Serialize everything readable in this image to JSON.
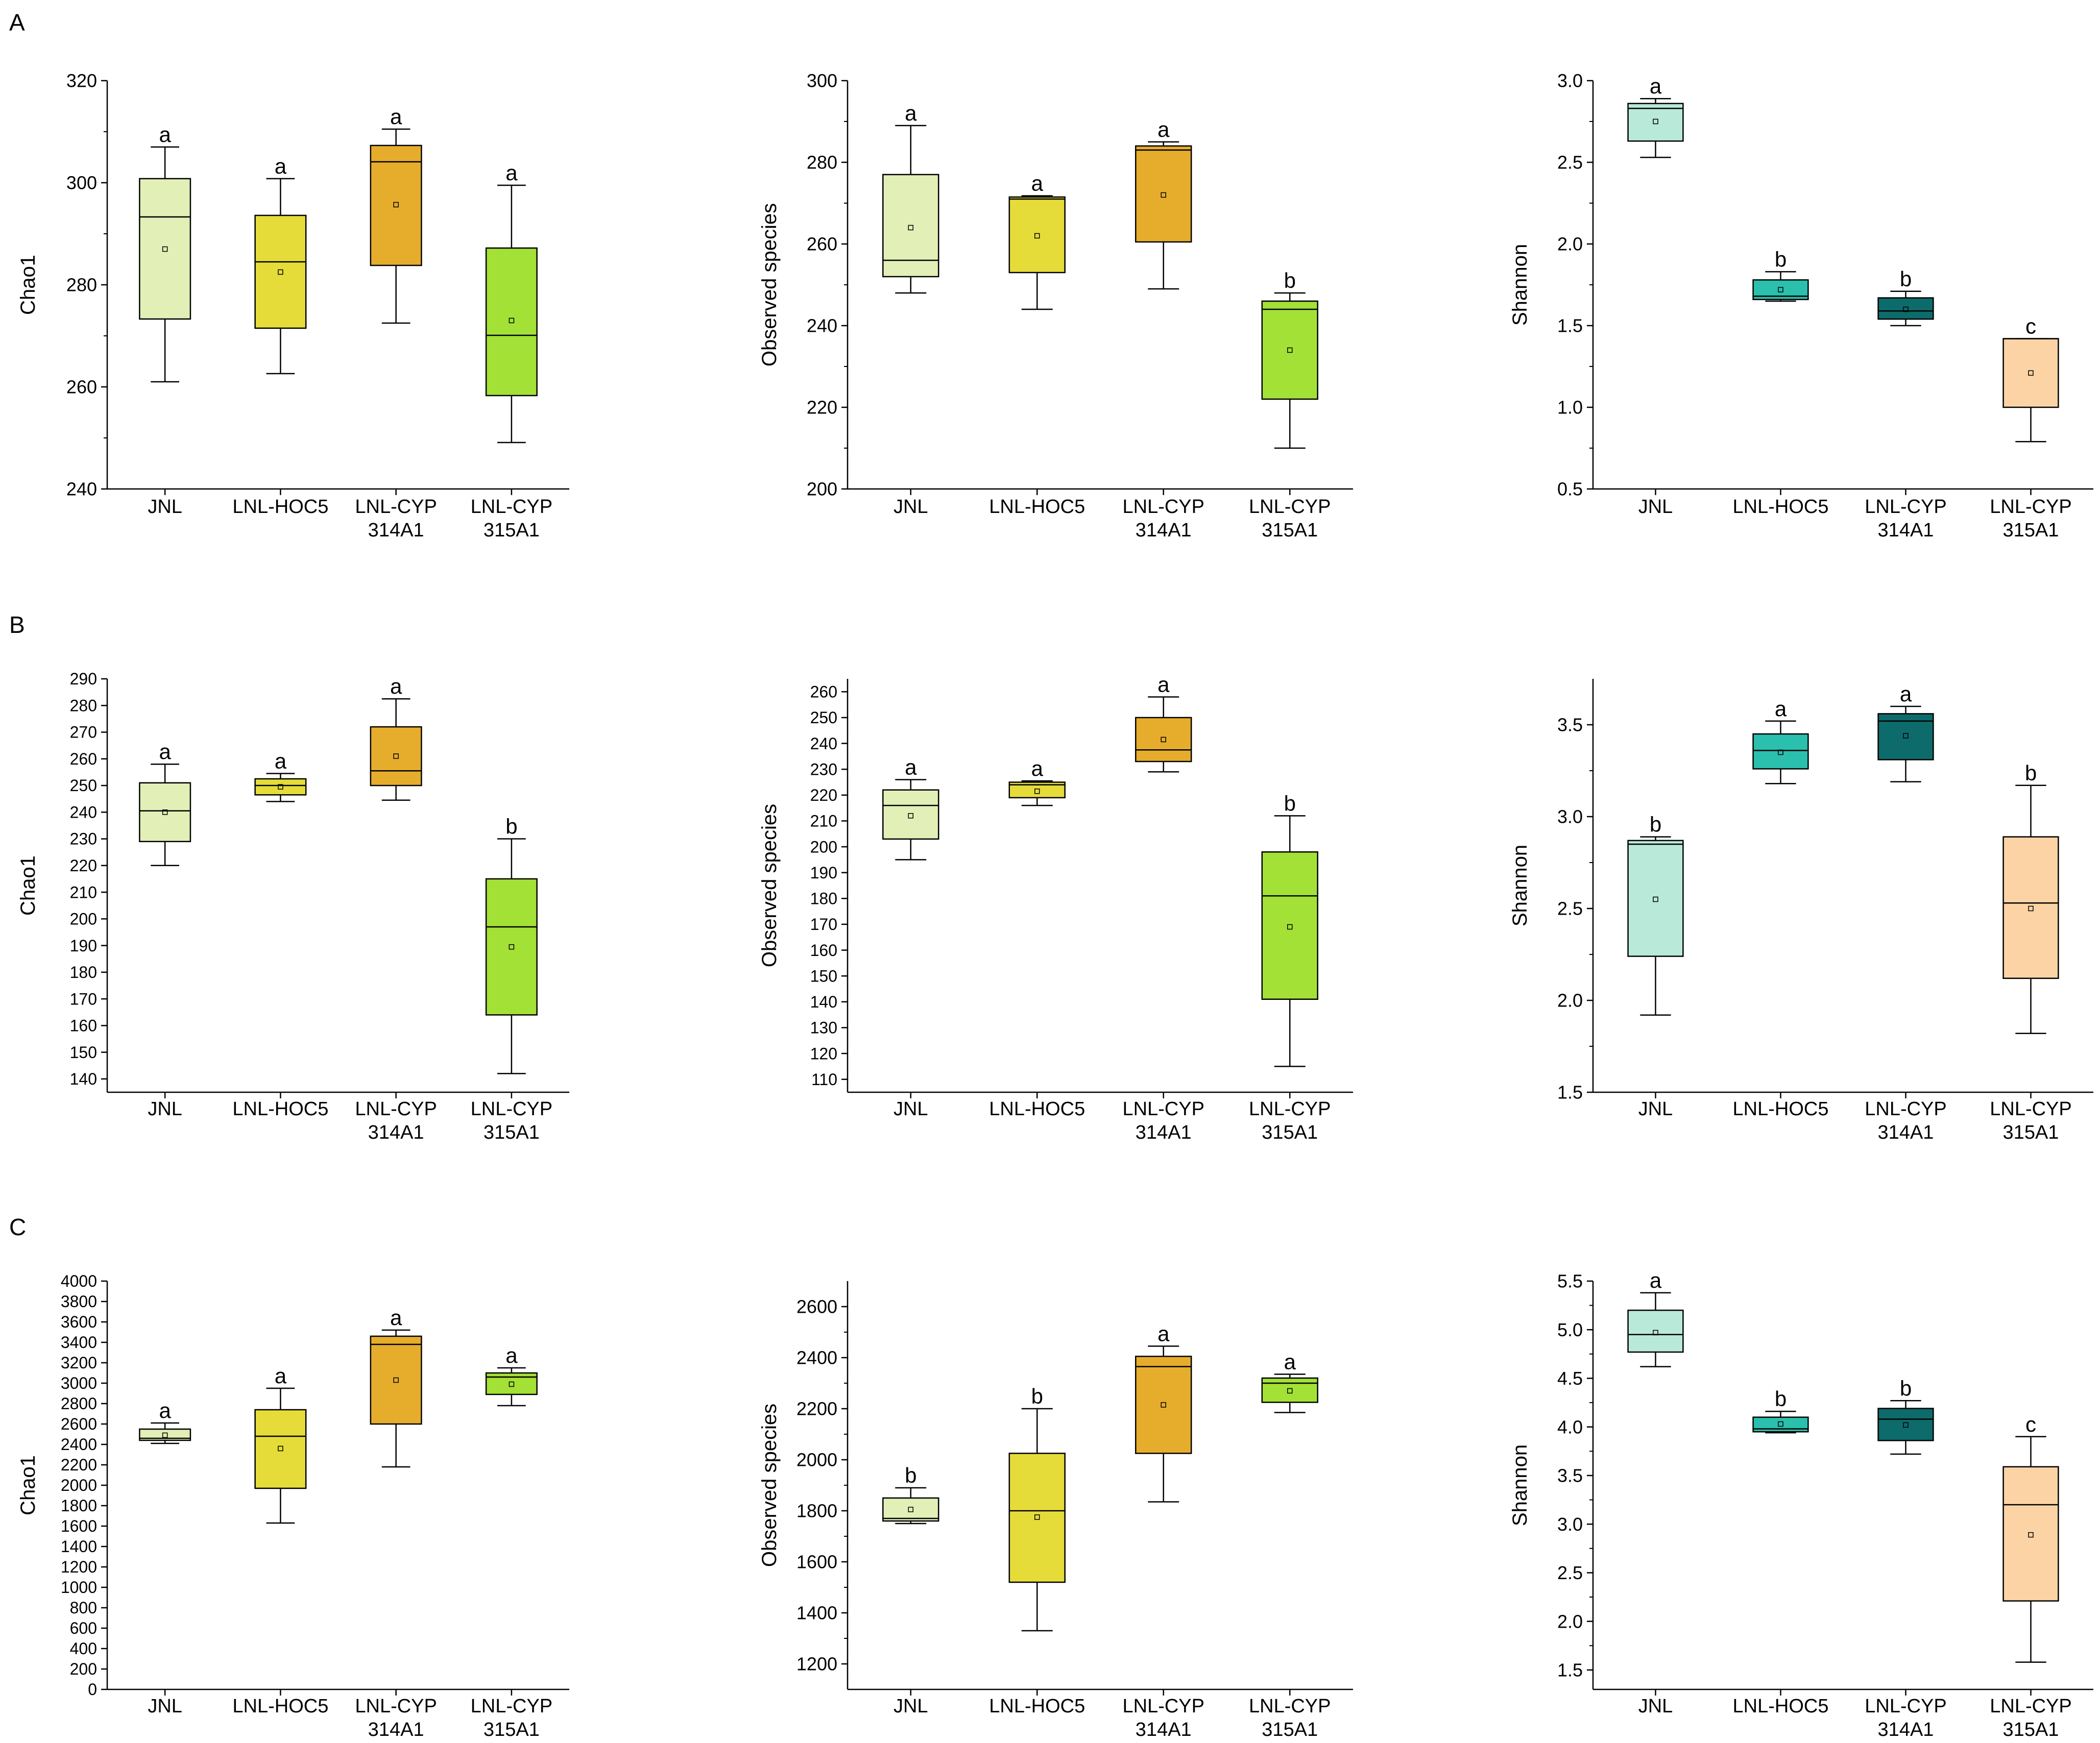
{
  "figure": {
    "panels": [
      {
        "letter": "A",
        "charts": [
          {
            "type": "box",
            "ylabel": "Chao1",
            "ylim": [
              240,
              320
            ],
            "yticks": [
              240,
              260,
              280,
              300,
              320
            ],
            "minor": true,
            "categories": [
              "JNL",
              "LNL-HOC5",
              "LNL-CYP|314A1",
              "LNL-CYP|315A1"
            ],
            "boxes": [
              {
                "min": 261,
                "q1": 273.3,
                "median": 293.3,
                "q3": 300.8,
                "max": 307,
                "mean": 287,
                "letter": "a",
                "color": "#e2efb6"
              },
              {
                "min": 262.6,
                "q1": 271.5,
                "median": 284.5,
                "q3": 293.6,
                "max": 300.8,
                "mean": 282.5,
                "letter": "a",
                "color": "#e5dc3a"
              },
              {
                "min": 272.5,
                "q1": 283.8,
                "median": 304.1,
                "q3": 307.3,
                "max": 310.5,
                "mean": 295.7,
                "letter": "a",
                "color": "#e6ad2d"
              },
              {
                "min": 249.1,
                "q1": 258.3,
                "median": 270.1,
                "q3": 287.2,
                "max": 299.5,
                "mean": 273,
                "letter": "a",
                "color": "#a3e136"
              }
            ]
          },
          {
            "type": "box",
            "ylabel": "Observed species",
            "ylim": [
              200,
              300
            ],
            "yticks": [
              200,
              220,
              240,
              260,
              280,
              300
            ],
            "minor": true,
            "categories": [
              "JNL",
              "LNL-HOC5",
              "LNL-CYP|314A1",
              "LNL-CYP|315A1"
            ],
            "boxes": [
              {
                "min": 248,
                "q1": 252,
                "median": 256,
                "q3": 277,
                "max": 289,
                "mean": 264,
                "letter": "a",
                "color": "#e2efb6"
              },
              {
                "min": 244,
                "q1": 253,
                "median": 271,
                "q3": 271.5,
                "max": 271.8,
                "mean": 262,
                "letter": "a",
                "color": "#e5dc3a"
              },
              {
                "min": 249,
                "q1": 260.5,
                "median": 283,
                "q3": 284,
                "max": 285,
                "mean": 272,
                "letter": "a",
                "color": "#e6ad2d"
              },
              {
                "min": 210,
                "q1": 222,
                "median": 244,
                "q3": 246,
                "max": 248,
                "mean": 234,
                "letter": "b",
                "color": "#a3e136"
              }
            ]
          },
          {
            "type": "box",
            "ylabel": "Shannon",
            "ylim": [
              0.5,
              3.0
            ],
            "yticks": [
              0.5,
              1.0,
              1.5,
              2.0,
              2.5,
              3.0
            ],
            "minor": true,
            "categories": [
              "JNL",
              "LNL-HOC5",
              "LNL-CYP|314A1",
              "LNL-CYP|315A1"
            ],
            "boxes": [
              {
                "min": 2.53,
                "q1": 2.63,
                "median": 2.83,
                "q3": 2.86,
                "max": 2.89,
                "mean": 2.75,
                "letter": "a",
                "color": "#b9e9d8"
              },
              {
                "min": 1.65,
                "q1": 1.66,
                "median": 1.68,
                "q3": 1.78,
                "max": 1.83,
                "mean": 1.72,
                "letter": "b",
                "color": "#2bbfad"
              },
              {
                "min": 1.5,
                "q1": 1.54,
                "median": 1.59,
                "q3": 1.67,
                "max": 1.71,
                "mean": 1.6,
                "letter": "b",
                "color": "#0d6b6b"
              },
              {
                "min": 0.79,
                "q1": 1.0,
                "median": 1.42,
                "q3": 1.42,
                "max": 1.42,
                "mean": 1.21,
                "letter": "c",
                "color": "#fbd3a5"
              }
            ]
          }
        ]
      },
      {
        "letter": "B",
        "charts": [
          {
            "type": "box",
            "ylabel": "Chao1",
            "ylim": [
              135,
              290
            ],
            "yticks": [
              140,
              150,
              160,
              170,
              180,
              190,
              200,
              210,
              220,
              230,
              240,
              250,
              260,
              270,
              280,
              290
            ],
            "minor": false,
            "categories": [
              "JNL",
              "LNL-HOC5",
              "LNL-CYP|314A1",
              "LNL-CYP|315A1"
            ],
            "boxes": [
              {
                "min": 220,
                "q1": 229,
                "median": 240.5,
                "q3": 251,
                "max": 258,
                "mean": 240,
                "letter": "a",
                "color": "#e2efb6"
              },
              {
                "min": 244,
                "q1": 246.5,
                "median": 250,
                "q3": 252.5,
                "max": 254.5,
                "mean": 249.5,
                "letter": "a",
                "color": "#e5dc3a"
              },
              {
                "min": 244.5,
                "q1": 250,
                "median": 255.5,
                "q3": 272,
                "max": 282.5,
                "mean": 261,
                "letter": "a",
                "color": "#e6ad2d"
              },
              {
                "min": 142,
                "q1": 164,
                "median": 197,
                "q3": 215,
                "max": 230,
                "mean": 189.5,
                "letter": "b",
                "color": "#a3e136"
              }
            ]
          },
          {
            "type": "box",
            "ylabel": "Observed species",
            "ylim": [
              105,
              265
            ],
            "yticks": [
              110,
              120,
              130,
              140,
              150,
              160,
              170,
              180,
              190,
              200,
              210,
              220,
              230,
              240,
              250,
              260
            ],
            "minor": false,
            "categories": [
              "JNL",
              "LNL-HOC5",
              "LNL-CYP|314A1",
              "LNL-CYP|315A1"
            ],
            "boxes": [
              {
                "min": 195,
                "q1": 203,
                "median": 216,
                "q3": 222,
                "max": 226,
                "mean": 212,
                "letter": "a",
                "color": "#e2efb6"
              },
              {
                "min": 216,
                "q1": 219,
                "median": 224,
                "q3": 225,
                "max": 225.5,
                "mean": 221.5,
                "letter": "a",
                "color": "#e5dc3a"
              },
              {
                "min": 229,
                "q1": 233,
                "median": 237.5,
                "q3": 250,
                "max": 258,
                "mean": 241.5,
                "letter": "a",
                "color": "#e6ad2d"
              },
              {
                "min": 115,
                "q1": 141,
                "median": 181,
                "q3": 198,
                "max": 212,
                "mean": 169,
                "letter": "b",
                "color": "#a3e136"
              }
            ]
          },
          {
            "type": "box",
            "ylabel": "Shannon",
            "ylim": [
              1.5,
              3.75
            ],
            "yticks": [
              1.5,
              2.0,
              2.5,
              3.0,
              3.5
            ],
            "minor": true,
            "categories": [
              "JNL",
              "LNL-HOC5",
              "LNL-CYP|314A1",
              "LNL-CYP|315A1"
            ],
            "boxes": [
              {
                "min": 1.92,
                "q1": 2.24,
                "median": 2.85,
                "q3": 2.87,
                "max": 2.89,
                "mean": 2.55,
                "letter": "b",
                "color": "#b9e9d8"
              },
              {
                "min": 3.18,
                "q1": 3.26,
                "median": 3.36,
                "q3": 3.45,
                "max": 3.52,
                "mean": 3.35,
                "letter": "a",
                "color": "#2bbfad"
              },
              {
                "min": 3.19,
                "q1": 3.31,
                "median": 3.52,
                "q3": 3.56,
                "max": 3.6,
                "mean": 3.44,
                "letter": "a",
                "color": "#0d6b6b"
              },
              {
                "min": 1.82,
                "q1": 2.12,
                "median": 2.53,
                "q3": 2.89,
                "max": 3.17,
                "mean": 2.5,
                "letter": "b",
                "color": "#fbd3a5"
              }
            ]
          }
        ]
      },
      {
        "letter": "C",
        "charts": [
          {
            "type": "box",
            "ylabel": "Chao1",
            "ylim": [
              0,
              4000
            ],
            "yticks": [
              0,
              200,
              400,
              600,
              800,
              1000,
              1200,
              1400,
              1600,
              1800,
              2000,
              2200,
              2400,
              2600,
              2800,
              3000,
              3200,
              3400,
              3600,
              3800,
              4000
            ],
            "minor": false,
            "categories": [
              "JNL",
              "LNL-HOC5",
              "LNL-CYP|314A1",
              "LNL-CYP|315A1"
            ],
            "boxes": [
              {
                "min": 2410,
                "q1": 2440,
                "median": 2460,
                "q3": 2550,
                "max": 2610,
                "mean": 2490,
                "letter": "a",
                "color": "#e2efb6"
              },
              {
                "min": 1630,
                "q1": 1970,
                "median": 2480,
                "q3": 2740,
                "max": 2950,
                "mean": 2360,
                "letter": "a",
                "color": "#e5dc3a"
              },
              {
                "min": 2180,
                "q1": 2600,
                "median": 3380,
                "q3": 3460,
                "max": 3520,
                "mean": 3030,
                "letter": "a",
                "color": "#e6ad2d"
              },
              {
                "min": 2780,
                "q1": 2890,
                "median": 3060,
                "q3": 3100,
                "max": 3150,
                "mean": 2990,
                "letter": "a",
                "color": "#a3e136"
              }
            ]
          },
          {
            "type": "box",
            "ylabel": "Observed species",
            "ylim": [
              1100,
              2700
            ],
            "yticks": [
              1200,
              1400,
              1600,
              1800,
              2000,
              2200,
              2400,
              2600
            ],
            "minor": true,
            "categories": [
              "JNL",
              "LNL-HOC5",
              "LNL-CYP|314A1",
              "LNL-CYP|315A1"
            ],
            "boxes": [
              {
                "min": 1750,
                "q1": 1760,
                "median": 1770,
                "q3": 1850,
                "max": 1890,
                "mean": 1805,
                "letter": "b",
                "color": "#e2efb6"
              },
              {
                "min": 1330,
                "q1": 1520,
                "median": 1800,
                "q3": 2025,
                "max": 2200,
                "mean": 1775,
                "letter": "b",
                "color": "#e5dc3a"
              },
              {
                "min": 1835,
                "q1": 2025,
                "median": 2365,
                "q3": 2405,
                "max": 2445,
                "mean": 2215,
                "letter": "a",
                "color": "#e6ad2d"
              },
              {
                "min": 2185,
                "q1": 2225,
                "median": 2300,
                "q3": 2320,
                "max": 2335,
                "mean": 2270,
                "letter": "a",
                "color": "#a3e136"
              }
            ]
          },
          {
            "type": "box",
            "ylabel": "Shannon",
            "ylim": [
              1.3,
              5.5
            ],
            "yticks": [
              1.5,
              2.0,
              2.5,
              3.0,
              3.5,
              4.0,
              4.5,
              5.0,
              5.5
            ],
            "minor": true,
            "categories": [
              "JNL",
              "LNL-HOC5",
              "LNL-CYP|314A1",
              "LNL-CYP|315A1"
            ],
            "boxes": [
              {
                "min": 4.62,
                "q1": 4.77,
                "median": 4.95,
                "q3": 5.2,
                "max": 5.38,
                "mean": 4.97,
                "letter": "a",
                "color": "#b9e9d8"
              },
              {
                "min": 3.94,
                "q1": 3.95,
                "median": 3.98,
                "q3": 4.1,
                "max": 4.16,
                "mean": 4.03,
                "letter": "b",
                "color": "#2bbfad"
              },
              {
                "min": 3.72,
                "q1": 3.86,
                "median": 4.08,
                "q3": 4.19,
                "max": 4.27,
                "mean": 4.02,
                "letter": "b",
                "color": "#0d6b6b"
              },
              {
                "min": 1.58,
                "q1": 2.21,
                "median": 3.2,
                "q3": 3.59,
                "max": 3.9,
                "mean": 2.89,
                "letter": "c",
                "color": "#fbd3a5"
              }
            ]
          }
        ]
      }
    ]
  }
}
